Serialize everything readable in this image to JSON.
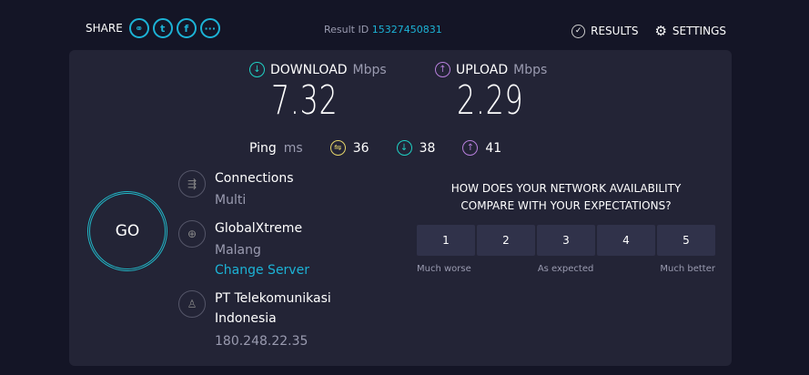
{
  "header": {
    "share_label": "SHARE",
    "share_icons": [
      "link-icon",
      "twitter-icon",
      "facebook-icon",
      "more-icon"
    ],
    "result_id_label": "Result ID",
    "result_id": "15327450831",
    "results_label": "RESULTS",
    "settings_label": "SETTINGS"
  },
  "download": {
    "label": "DOWNLOAD",
    "unit": "Mbps",
    "value": "7.32",
    "color": "#1fd1c4"
  },
  "upload": {
    "label": "UPLOAD",
    "unit": "Mbps",
    "value": "2.29",
    "color": "#b77fdc"
  },
  "ping": {
    "label": "Ping",
    "unit": "ms",
    "idle": "36",
    "download": "38",
    "upload": "41",
    "idle_color": "#e5d56a"
  },
  "go_label": "GO",
  "connections": {
    "title": "Connections",
    "value": "Multi"
  },
  "server": {
    "name": "GlobalXtreme",
    "location": "Malang",
    "change": "Change Server"
  },
  "isp": {
    "name_line1": "PT Telekomunikasi",
    "name_line2": "Indonesia",
    "ip": "180.248.22.35"
  },
  "survey": {
    "question_line1": "HOW DOES YOUR NETWORK AVAILABILITY",
    "question_line2": "COMPARE WITH YOUR EXPECTATIONS?",
    "options": [
      "1",
      "2",
      "3",
      "4",
      "5"
    ],
    "low": "Much worse",
    "mid": "As expected",
    "high": "Much better"
  }
}
